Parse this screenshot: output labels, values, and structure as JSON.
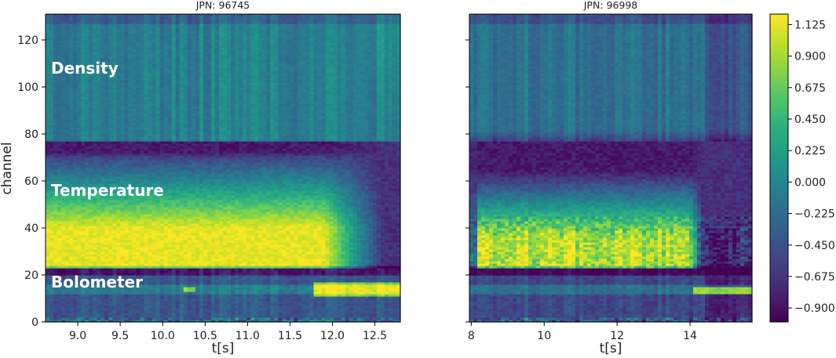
{
  "chart_data": [
    {
      "type": "heatmap",
      "title": "JPN: 96745",
      "xlabel": "t[s]",
      "ylabel": "channel",
      "xlim": [
        8.62,
        12.8
      ],
      "ylim": [
        0,
        131
      ],
      "x_ticks": [
        9.0,
        9.5,
        10.0,
        10.5,
        11.0,
        11.5,
        12.0,
        12.5
      ],
      "x_tick_labels": [
        "9.0",
        "9.5",
        "10.0",
        "10.5",
        "11.0",
        "11.5",
        "12.0",
        "12.5"
      ],
      "y_ticks": [
        0,
        20,
        40,
        60,
        80,
        100,
        120
      ],
      "y_tick_labels": [
        "0",
        "20",
        "40",
        "60",
        "80",
        "100",
        "120"
      ],
      "regions": [
        {
          "label": "Density",
          "channel_range": [
            77,
            131
          ],
          "typical_value": -0.05
        },
        {
          "label": "Temperature",
          "channel_range": [
            23,
            77
          ],
          "typical_value": 0.3,
          "peak_value": 1.125,
          "peak_channels": [
            24,
            40
          ],
          "peak_time_range": [
            8.62,
            11.9
          ]
        },
        {
          "label": "Bolometer",
          "channel_range": [
            0,
            23
          ],
          "typical_value": -0.4
        }
      ]
    },
    {
      "type": "heatmap",
      "title": "JPN: 96998",
      "xlabel": "t[s]",
      "ylabel": "",
      "xlim": [
        7.95,
        15.7
      ],
      "ylim": [
        0,
        131
      ],
      "x_ticks": [
        8,
        10,
        12,
        14
      ],
      "x_tick_labels": [
        "8",
        "10",
        "12",
        "14"
      ],
      "y_ticks": [
        0,
        20,
        40,
        60,
        80,
        100,
        120
      ],
      "regions": [
        {
          "channel_range": [
            77,
            131
          ],
          "typical_value": -0.15
        },
        {
          "channel_range": [
            23,
            77
          ],
          "typical_value": -0.2,
          "peak_value": 1.0,
          "peak_channels": [
            26,
            36
          ],
          "peak_time_range": [
            8.2,
            14.0
          ]
        },
        {
          "channel_range": [
            0,
            23
          ],
          "typical_value": -0.5
        }
      ]
    }
  ],
  "colorbar": {
    "colormap": "viridis",
    "range": [
      -1.0,
      1.2
    ],
    "ticks": [
      1.125,
      0.9,
      0.675,
      0.45,
      0.225,
      0.0,
      -0.225,
      -0.45,
      -0.675,
      -0.9
    ],
    "tick_labels": [
      "1.125",
      "0.900",
      "0.675",
      "0.450",
      "0.225",
      "0.000",
      "−0.225",
      "−0.450",
      "−0.675",
      "−0.900"
    ]
  }
}
